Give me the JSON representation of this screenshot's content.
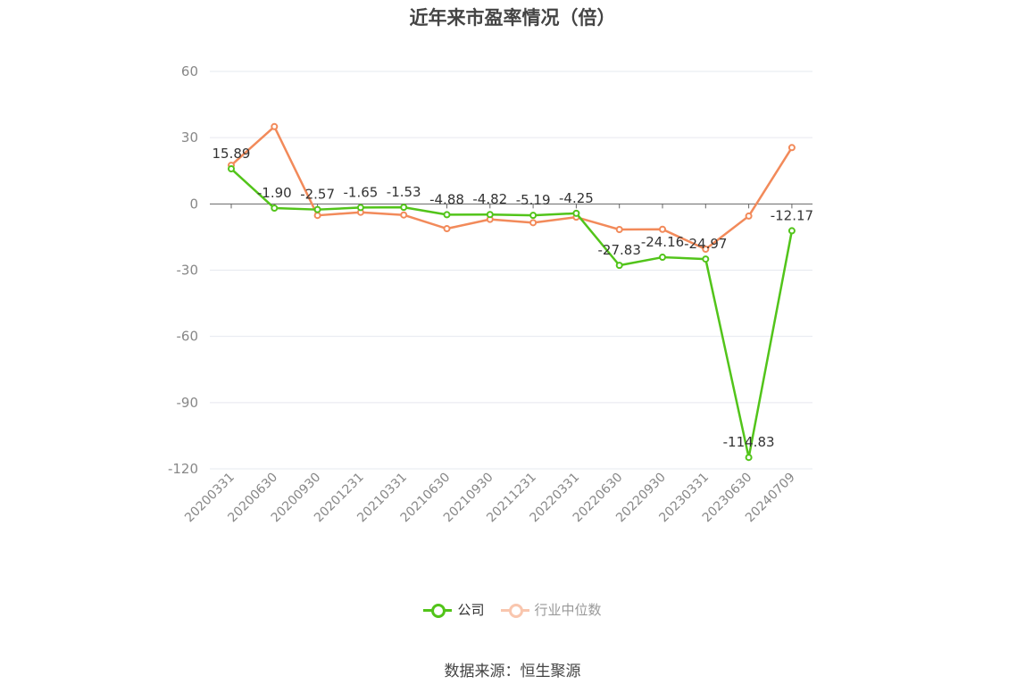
{
  "chart_data": {
    "type": "line",
    "title": "近年来市盈率情况（倍）",
    "categories": [
      "20200331",
      "20200630",
      "20200930",
      "20201231",
      "20210331",
      "20210630",
      "20210930",
      "20211231",
      "20220331",
      "20220630",
      "20220930",
      "20230331",
      "20230630",
      "20240709"
    ],
    "series": [
      {
        "name": "公司",
        "color": "#52c41a",
        "values": [
          15.89,
          -1.9,
          -2.57,
          -1.65,
          -1.53,
          -4.88,
          -4.82,
          -5.19,
          -4.25,
          -27.83,
          -24.16,
          -24.97,
          -114.83,
          -12.17
        ],
        "labels": [
          "15.89",
          "-1.90",
          "-2.57",
          "-1.65",
          "-1.53",
          "-4.88",
          "-4.82",
          "-5.19",
          "-4.25",
          "-27.83",
          "-24.16",
          "-24.97",
          "-114.83",
          "-12.17"
        ]
      },
      {
        "name": "行业中位数",
        "color": "#f28a5a",
        "values": [
          17.5,
          35.0,
          -5.2,
          -3.8,
          -5.0,
          -11.2,
          -7.0,
          -8.5,
          -6.0,
          -11.6,
          -11.5,
          -20.5,
          -5.5,
          25.5
        ]
      }
    ],
    "yticks": [
      "60",
      "30",
      "0",
      "-30",
      "-60",
      "-90",
      "-120"
    ],
    "ylim": [
      -120,
      60
    ],
    "grid": true,
    "legend_position": "bottom-center",
    "source": "数据来源：恒生聚源"
  }
}
